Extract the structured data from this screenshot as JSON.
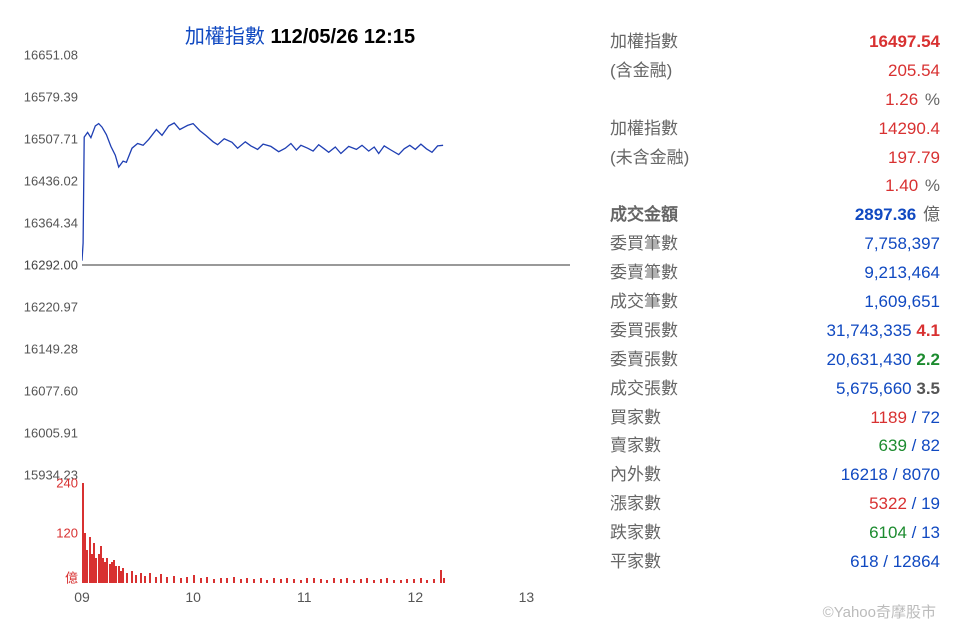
{
  "chart": {
    "title_label": "加權指數",
    "datetime": "112/05/26 12:15",
    "title_label_color": "#1049c1",
    "price": {
      "type": "line",
      "color": "#1f3fb3",
      "line_width": 1.3,
      "background": "#ffffff",
      "baseline_value": 16292.0,
      "baseline_color": "#999999",
      "ylim": [
        15934.23,
        16651.08
      ],
      "ylabels": [
        "16651.08",
        "16579.39",
        "16507.71",
        "16436.02",
        "16364.34",
        "16292.00",
        "16220.97",
        "16149.28",
        "16077.60",
        "16005.91",
        "15934.23"
      ],
      "ylabel_color": "#555555",
      "ylabel_fontsize": 13,
      "x_start": 9.0,
      "x_end": 13.5,
      "x_last": 12.25,
      "xticks": [
        "09",
        "10",
        "11",
        "12",
        "13"
      ],
      "points": [
        [
          9.0,
          16300
        ],
        [
          9.01,
          16330
        ],
        [
          9.02,
          16511
        ],
        [
          9.05,
          16519
        ],
        [
          9.08,
          16510
        ],
        [
          9.12,
          16530
        ],
        [
          9.15,
          16534
        ],
        [
          9.18,
          16528
        ],
        [
          9.22,
          16515
        ],
        [
          9.26,
          16495
        ],
        [
          9.3,
          16480
        ],
        [
          9.33,
          16460
        ],
        [
          9.37,
          16470
        ],
        [
          9.4,
          16468
        ],
        [
          9.45,
          16492
        ],
        [
          9.5,
          16500
        ],
        [
          9.55,
          16497
        ],
        [
          9.6,
          16507
        ],
        [
          9.67,
          16524
        ],
        [
          9.72,
          16514
        ],
        [
          9.78,
          16530
        ],
        [
          9.83,
          16535
        ],
        [
          9.88,
          16524
        ],
        [
          9.95,
          16531
        ],
        [
          10.0,
          16534
        ],
        [
          10.06,
          16522
        ],
        [
          10.12,
          16513
        ],
        [
          10.18,
          16503
        ],
        [
          10.22,
          16498
        ],
        [
          10.28,
          16508
        ],
        [
          10.35,
          16502
        ],
        [
          10.4,
          16492
        ],
        [
          10.47,
          16503
        ],
        [
          10.52,
          16496
        ],
        [
          10.58,
          16490
        ],
        [
          10.63,
          16499
        ],
        [
          10.7,
          16495
        ],
        [
          10.77,
          16486
        ],
        [
          10.83,
          16492
        ],
        [
          10.88,
          16500
        ],
        [
          10.93,
          16489
        ],
        [
          10.97,
          16497
        ],
        [
          11.03,
          16492
        ],
        [
          11.08,
          16487
        ],
        [
          11.13,
          16498
        ],
        [
          11.18,
          16491
        ],
        [
          11.22,
          16485
        ],
        [
          11.28,
          16494
        ],
        [
          11.33,
          16483
        ],
        [
          11.4,
          16495
        ],
        [
          11.47,
          16490
        ],
        [
          11.52,
          16497
        ],
        [
          11.58,
          16487
        ],
        [
          11.63,
          16494
        ],
        [
          11.67,
          16483
        ],
        [
          11.72,
          16496
        ],
        [
          11.78,
          16489
        ],
        [
          11.85,
          16481
        ],
        [
          11.9,
          16491
        ],
        [
          11.95,
          16497
        ],
        [
          12.0,
          16490
        ],
        [
          12.05,
          16499
        ],
        [
          12.1,
          16491
        ],
        [
          12.15,
          16485
        ],
        [
          12.2,
          16496
        ],
        [
          12.25,
          16497
        ]
      ]
    },
    "volume": {
      "type": "bar",
      "color": "#d83131",
      "unit_label": "億",
      "ylim": [
        0,
        240
      ],
      "ylabels": [
        "240",
        "120",
        "億"
      ],
      "bars": [
        [
          9.0,
          240
        ],
        [
          9.02,
          120
        ],
        [
          9.04,
          80
        ],
        [
          9.06,
          110
        ],
        [
          9.08,
          70
        ],
        [
          9.1,
          95
        ],
        [
          9.12,
          60
        ],
        [
          9.14,
          70
        ],
        [
          9.16,
          90
        ],
        [
          9.18,
          60
        ],
        [
          9.2,
          50
        ],
        [
          9.22,
          60
        ],
        [
          9.24,
          45
        ],
        [
          9.26,
          50
        ],
        [
          9.28,
          55
        ],
        [
          9.3,
          40
        ],
        [
          9.32,
          42
        ],
        [
          9.34,
          30
        ],
        [
          9.36,
          35
        ],
        [
          9.4,
          25
        ],
        [
          9.44,
          28
        ],
        [
          9.48,
          20
        ],
        [
          9.52,
          25
        ],
        [
          9.56,
          18
        ],
        [
          9.6,
          25
        ],
        [
          9.66,
          15
        ],
        [
          9.7,
          22
        ],
        [
          9.76,
          14
        ],
        [
          9.82,
          18
        ],
        [
          9.88,
          12
        ],
        [
          9.94,
          15
        ],
        [
          10.0,
          20
        ],
        [
          10.06,
          12
        ],
        [
          10.12,
          14
        ],
        [
          10.18,
          10
        ],
        [
          10.24,
          13
        ],
        [
          10.3,
          11
        ],
        [
          10.36,
          14
        ],
        [
          10.42,
          9
        ],
        [
          10.48,
          12
        ],
        [
          10.54,
          10
        ],
        [
          10.6,
          12
        ],
        [
          10.66,
          8
        ],
        [
          10.72,
          11
        ],
        [
          10.78,
          9
        ],
        [
          10.84,
          12
        ],
        [
          10.9,
          10
        ],
        [
          10.96,
          8
        ],
        [
          11.02,
          11
        ],
        [
          11.08,
          12
        ],
        [
          11.14,
          9
        ],
        [
          11.2,
          8
        ],
        [
          11.26,
          11
        ],
        [
          11.32,
          9
        ],
        [
          11.38,
          13
        ],
        [
          11.44,
          8
        ],
        [
          11.5,
          10
        ],
        [
          11.56,
          12
        ],
        [
          11.62,
          8
        ],
        [
          11.68,
          9
        ],
        [
          11.74,
          11
        ],
        [
          11.8,
          8
        ],
        [
          11.86,
          7
        ],
        [
          11.92,
          10
        ],
        [
          11.98,
          9
        ],
        [
          12.04,
          11
        ],
        [
          12.1,
          8
        ],
        [
          12.16,
          10
        ],
        [
          12.22,
          32
        ],
        [
          12.25,
          11
        ]
      ]
    }
  },
  "stats": {
    "items": [
      {
        "label": "加權指數",
        "value": "16497.54",
        "vclass": "red bold"
      },
      {
        "label": "(含金融)",
        "value": "205.54",
        "vclass": "red"
      },
      {
        "label": "",
        "value": "1.26",
        "vclass": "red",
        "suffix": " %"
      },
      {
        "label": "加權指數",
        "value": "14290.4",
        "vclass": "red"
      },
      {
        "label": "(未含金融)",
        "value": "197.79",
        "vclass": "red"
      },
      {
        "label": "",
        "value": "1.40",
        "vclass": "red",
        "suffix": " %"
      },
      {
        "label": "成交金額",
        "value": "2897.36",
        "vclass": "blue bold",
        "suffix": " 億",
        "lclass": "bold"
      },
      {
        "label": "委買筆數",
        "value": "7,758,397",
        "vclass": "blue"
      },
      {
        "label": "委賣筆數",
        "value": "9,213,464",
        "vclass": "blue"
      },
      {
        "label": "成交筆數",
        "value": "1,609,651",
        "vclass": "blue"
      },
      {
        "label": "委買張數",
        "value": "31,743,335",
        "vclass": "blue",
        "extra": "4.1",
        "eclass": "red bold"
      },
      {
        "label": "委賣張數",
        "value": "20,631,430",
        "vclass": "blue",
        "extra": "2.2",
        "eclass": "green bold"
      },
      {
        "label": "成交張數",
        "value": "5,675,660",
        "vclass": "blue",
        "extra": "3.5",
        "eclass": "gray bold"
      },
      {
        "label": "買家數",
        "value": "1189",
        "vclass": "red",
        "after": " / 72",
        "aclass": "blue"
      },
      {
        "label": "賣家數",
        "value": "639",
        "vclass": "green",
        "after": " / 82",
        "aclass": "blue"
      },
      {
        "label": "內外數",
        "value": "16218",
        "vclass": "blue",
        "after": " / 8070",
        "aclass": "blue"
      },
      {
        "label": "漲家數",
        "value": "5322",
        "vclass": "red",
        "after": " / 19",
        "aclass": "blue"
      },
      {
        "label": "跌家數",
        "value": "6104",
        "vclass": "green",
        "after": " / 13",
        "aclass": "blue"
      },
      {
        "label": "平家數",
        "value": "618",
        "vclass": "blue",
        "after": " / 12864",
        "aclass": "blue"
      }
    ]
  },
  "watermark": "©Yahoo奇摩股市",
  "colors": {
    "red": "#d83131",
    "green": "#1c8b2f",
    "blue": "#1049c1",
    "gray": "#555555"
  }
}
